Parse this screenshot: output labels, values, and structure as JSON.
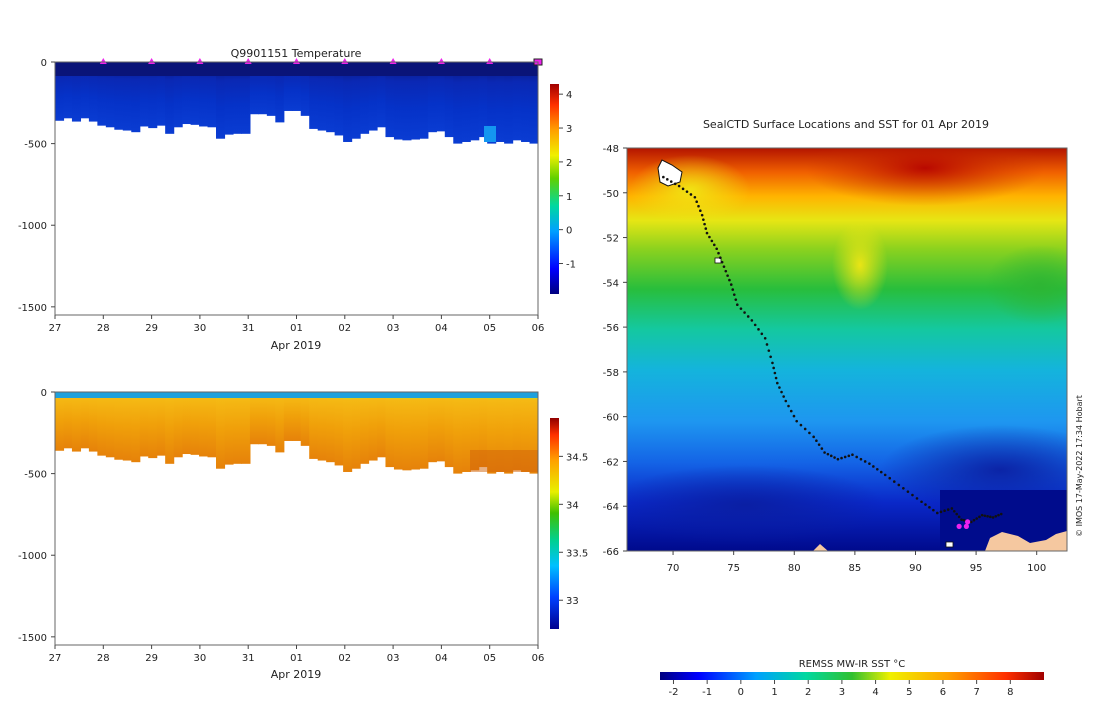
{
  "chart_data": [
    {
      "type": "heatmap",
      "title": "Q9901151  Temperature",
      "xlabel": "Apr 2019",
      "ylabel": "",
      "x_ticks": [
        "27",
        "28",
        "29",
        "30",
        "31",
        "01",
        "02",
        "03",
        "04",
        "05",
        "06"
      ],
      "y_ticks": [
        0,
        -500,
        -1000,
        -1500
      ],
      "ylim": [
        -1550,
        0
      ],
      "colorbar": {
        "ticks": [
          4,
          3,
          2,
          1,
          0,
          -1
        ],
        "range": [
          -1.9,
          4.3
        ],
        "colormap": "jet"
      },
      "profile_bottom_depths": [
        360,
        345,
        365,
        345,
        365,
        390,
        400,
        415,
        420,
        430,
        395,
        405,
        390,
        440,
        400,
        380,
        385,
        395,
        400,
        470,
        445,
        440,
        440,
        320,
        320,
        330,
        370,
        300,
        300,
        330,
        410,
        420,
        430,
        450,
        490,
        470,
        440,
        420,
        400,
        460,
        475,
        480,
        475,
        470,
        430,
        425,
        460,
        500,
        490,
        480,
        460,
        500,
        490,
        500,
        480,
        490,
        500
      ],
      "surface_markers_x": [
        "28",
        "29",
        "30",
        "31",
        "01",
        "02",
        "03",
        "04",
        "05"
      ],
      "end_marker_x": "06"
    },
    {
      "type": "heatmap",
      "title": "",
      "xlabel": "Apr 2019",
      "ylabel": "",
      "x_ticks": [
        "27",
        "28",
        "29",
        "30",
        "31",
        "01",
        "02",
        "03",
        "04",
        "05",
        "06"
      ],
      "y_ticks": [
        0,
        -500,
        -1000,
        -1500
      ],
      "ylim": [
        -1550,
        0
      ],
      "colorbar": {
        "ticks": [
          34.5,
          34,
          33.5,
          33
        ],
        "range": [
          32.7,
          34.9
        ],
        "colormap": "jet"
      }
    },
    {
      "type": "heatmap",
      "title": "SealCTD Surface Locations and SST for 01 Apr 2019",
      "xlabel": "",
      "ylabel": "",
      "x_ticks": [
        70,
        75,
        80,
        85,
        90,
        95,
        100
      ],
      "y_ticks": [
        -48,
        -50,
        -52,
        -54,
        -56,
        -58,
        -60,
        -62,
        -64,
        -66
      ],
      "xlim": [
        66.2,
        102.5
      ],
      "ylim": [
        -66,
        -48
      ],
      "track": [
        [
          69.2,
          -49.3
        ],
        [
          70.5,
          -49.7
        ],
        [
          71.8,
          -50.2
        ],
        [
          72.4,
          -51
        ],
        [
          72.8,
          -51.8
        ],
        [
          73.6,
          -52.5
        ],
        [
          74.2,
          -53.3
        ],
        [
          74.8,
          -54.1
        ],
        [
          75.3,
          -55
        ],
        [
          76.5,
          -55.7
        ],
        [
          77.6,
          -56.5
        ],
        [
          78.2,
          -57.6
        ],
        [
          78.6,
          -58.5
        ],
        [
          79.3,
          -59.3
        ],
        [
          80.2,
          -60.2
        ],
        [
          81.6,
          -60.9
        ],
        [
          82.5,
          -61.6
        ],
        [
          83.6,
          -61.9
        ],
        [
          84.8,
          -61.7
        ],
        [
          86.2,
          -62.1
        ],
        [
          87.5,
          -62.6
        ],
        [
          89.0,
          -63.2
        ],
        [
          90.5,
          -63.8
        ],
        [
          91.8,
          -64.3
        ],
        [
          93.0,
          -64.1
        ],
        [
          93.8,
          -64.6
        ],
        [
          94.6,
          -64.7
        ],
        [
          95.5,
          -64.4
        ],
        [
          96.4,
          -64.5
        ],
        [
          97.3,
          -64.3
        ]
      ],
      "track_end_points": [
        [
          93.6,
          -64.9
        ],
        [
          94.2,
          -64.9
        ],
        [
          94.3,
          -64.7
        ]
      ],
      "copyright": "© IMOS 17-May-2022 17:34 Hobart",
      "colorbar": {
        "title": "REMSS MW-IR SST °C",
        "ticks": [
          -2,
          -1,
          0,
          1,
          2,
          3,
          4,
          5,
          6,
          7,
          8
        ],
        "range": [
          -2.4,
          9.0
        ],
        "colormap": "jet"
      }
    }
  ]
}
